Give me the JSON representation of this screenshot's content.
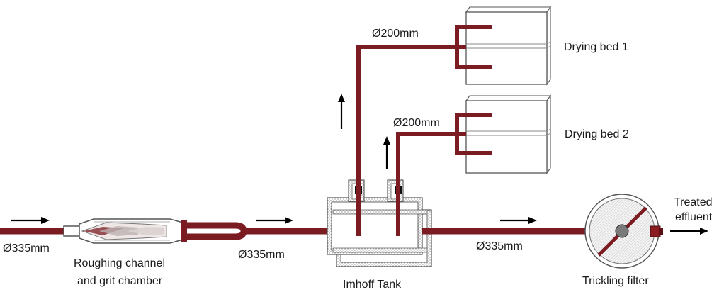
{
  "labels": {
    "pipe_inlet": "Ø335mm",
    "roughing_line1": "Roughing channel",
    "roughing_line2": "and grit chamber",
    "pipe_mid": "Ø335mm",
    "imhoff": "Imhoff Tank",
    "pipe_outlet": "Ø335mm",
    "trickling": "Trickling filter",
    "treated_line1": "Treated",
    "treated_line2": "effluent",
    "pipe_bed1": "Ø200mm",
    "pipe_bed2": "Ø200mm",
    "bed1": "Drying bed 1",
    "bed2": "Drying bed 2"
  },
  "colors": {
    "pipe": "#7a1c22",
    "outline": "#555555",
    "arrow": "#000000"
  }
}
